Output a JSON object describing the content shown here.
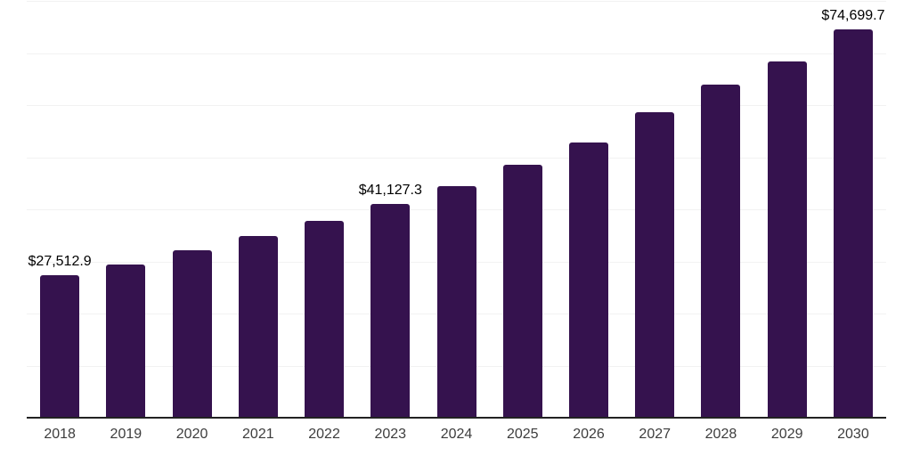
{
  "chart_data": {
    "type": "bar",
    "title": "",
    "xlabel": "",
    "ylabel": "",
    "categories": [
      "2018",
      "2019",
      "2020",
      "2021",
      "2022",
      "2023",
      "2024",
      "2025",
      "2026",
      "2027",
      "2028",
      "2029",
      "2030"
    ],
    "values": [
      27512.9,
      29600,
      32300,
      35100,
      37900,
      41127.3,
      44700,
      48800,
      53000,
      58800,
      64100,
      68500,
      74699.7
    ],
    "value_labels": [
      "$27,512.9",
      "",
      "",
      "",
      "",
      "$41,127.3",
      "",
      "",
      "",
      "",
      "",
      "",
      "$74,699.7"
    ],
    "ylim": [
      0,
      80000
    ],
    "gridline_step": 10000,
    "grid": true,
    "legend": "none",
    "colors": {
      "bar": "#35124e",
      "gridline": "#f2f2f2",
      "axis_line": "#222222",
      "tick_label": "#3d3d3d",
      "value_label": "#000000",
      "background": "#ffffff"
    }
  }
}
